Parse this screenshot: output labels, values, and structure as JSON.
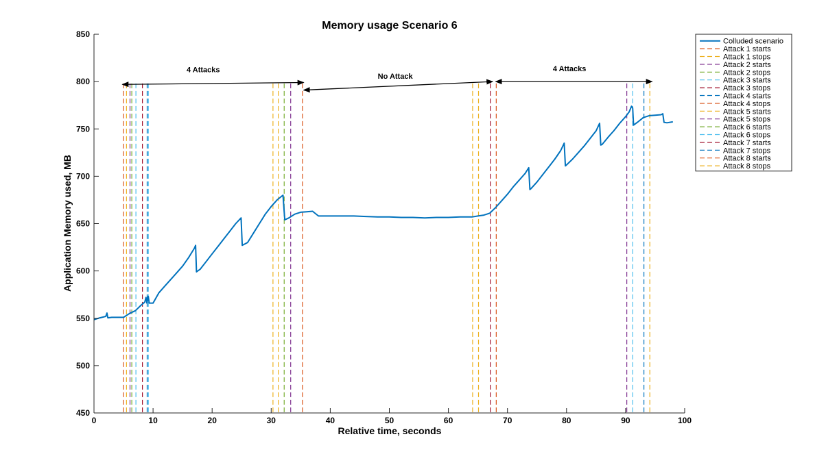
{
  "chart_data": {
    "type": "line",
    "title": "Memory usage Scenario 6",
    "xlabel": "Relative time, seconds",
    "ylabel": "Application Memory used, MB",
    "xlim": [
      0,
      100
    ],
    "ylim": [
      450,
      850
    ],
    "xticks": [
      0,
      10,
      20,
      30,
      40,
      50,
      60,
      70,
      80,
      90,
      100
    ],
    "yticks": [
      450,
      500,
      550,
      600,
      650,
      700,
      750,
      800,
      850
    ],
    "grid": false,
    "legend_position": "top-right outside",
    "colors": {
      "series": "#0072BD",
      "attack_palette": [
        "#D95319",
        "#EDB120",
        "#7E2F8E",
        "#77AC30",
        "#4DBEEE",
        "#A2142F",
        "#0072BD"
      ]
    },
    "series": [
      {
        "name": "Colluded scenario",
        "color": "#0072BD",
        "points": [
          [
            0,
            548.5
          ],
          [
            1.0,
            550.5
          ],
          [
            2.0,
            552.0
          ],
          [
            2.2,
            555.5
          ],
          [
            2.35,
            550.5
          ],
          [
            3.0,
            551.0
          ],
          [
            4.0,
            551.0
          ],
          [
            5.0,
            551.0
          ],
          [
            6.0,
            555.0
          ],
          [
            7.0,
            558.0
          ],
          [
            8.0,
            564.0
          ],
          [
            8.6,
            567.0
          ],
          [
            8.8,
            572.0
          ],
          [
            8.95,
            566.0
          ],
          [
            9.2,
            573.0
          ],
          [
            9.35,
            566.0
          ],
          [
            10.0,
            566.0
          ],
          [
            11.0,
            577.0
          ],
          [
            12.0,
            584.0
          ],
          [
            13.0,
            591.0
          ],
          [
            14.0,
            598.0
          ],
          [
            15.0,
            605.0
          ],
          [
            16.0,
            614.0
          ],
          [
            17.0,
            624.0
          ],
          [
            17.2,
            627.0
          ],
          [
            17.35,
            599.0
          ],
          [
            18.0,
            602.0
          ],
          [
            19.0,
            610.0
          ],
          [
            20.0,
            618.0
          ],
          [
            21.0,
            626.0
          ],
          [
            22.0,
            634.0
          ],
          [
            23.0,
            642.0
          ],
          [
            24.0,
            650.0
          ],
          [
            24.9,
            656.0
          ],
          [
            25.1,
            627.0
          ],
          [
            26.0,
            630.0
          ],
          [
            27.0,
            640.0
          ],
          [
            28.0,
            650.0
          ],
          [
            29.0,
            660.0
          ],
          [
            30.0,
            668.0
          ],
          [
            31.0,
            675.0
          ],
          [
            32.0,
            680.0
          ],
          [
            32.3,
            654.0
          ],
          [
            33.0,
            656.0
          ],
          [
            34.0,
            660.0
          ],
          [
            35.0,
            662.0
          ],
          [
            36.0,
            662.5
          ],
          [
            37.0,
            663.0
          ],
          [
            38.0,
            658.0
          ],
          [
            40.0,
            658.0
          ],
          [
            42.0,
            658.0
          ],
          [
            44.0,
            658.0
          ],
          [
            46.0,
            657.5
          ],
          [
            48.0,
            657.0
          ],
          [
            50.0,
            657.0
          ],
          [
            52.0,
            656.5
          ],
          [
            54.0,
            656.5
          ],
          [
            56.0,
            656.0
          ],
          [
            58.0,
            656.5
          ],
          [
            60.0,
            656.5
          ],
          [
            62.0,
            657.0
          ],
          [
            64.0,
            657.0
          ],
          [
            65.0,
            658.0
          ],
          [
            66.0,
            659.0
          ],
          [
            67.0,
            661.0
          ],
          [
            68.0,
            667.0
          ],
          [
            69.0,
            674.0
          ],
          [
            70.0,
            681.0
          ],
          [
            71.0,
            689.0
          ],
          [
            72.0,
            696.0
          ],
          [
            73.0,
            703.0
          ],
          [
            73.6,
            709.0
          ],
          [
            73.8,
            686.0
          ],
          [
            74.0,
            687.0
          ],
          [
            75.0,
            694.0
          ],
          [
            76.0,
            702.0
          ],
          [
            77.0,
            710.0
          ],
          [
            78.0,
            718.0
          ],
          [
            79.0,
            727.0
          ],
          [
            79.6,
            735.0
          ],
          [
            79.8,
            711.0
          ],
          [
            80.0,
            712.0
          ],
          [
            81.0,
            718.0
          ],
          [
            82.0,
            725.0
          ],
          [
            83.0,
            732.0
          ],
          [
            84.0,
            740.0
          ],
          [
            85.0,
            748.0
          ],
          [
            85.6,
            756.0
          ],
          [
            85.8,
            733.0
          ],
          [
            86.0,
            733.5
          ],
          [
            87.0,
            741.0
          ],
          [
            88.0,
            748.0
          ],
          [
            89.0,
            756.0
          ],
          [
            90.0,
            763.0
          ],
          [
            90.6,
            768.0
          ],
          [
            91.0,
            774.0
          ],
          [
            91.2,
            772.0
          ],
          [
            91.35,
            754.0
          ],
          [
            92.0,
            757.0
          ],
          [
            93.0,
            762.0
          ],
          [
            94.0,
            764.0
          ],
          [
            95.0,
            764.5
          ],
          [
            96.0,
            765.0
          ],
          [
            96.3,
            766.0
          ],
          [
            96.5,
            757.0
          ],
          [
            97.0,
            756.5
          ],
          [
            98.0,
            757.5
          ]
        ]
      }
    ],
    "attack_lines": [
      {
        "label": "Attack 1 starts",
        "x": 5.0,
        "color": "#D95319"
      },
      {
        "label": "Attack 1 stops",
        "x": 5.5,
        "color": "#EDB120"
      },
      {
        "label": "Attack 2 starts",
        "x": 6.1,
        "color": "#7E2F8E"
      },
      {
        "label": "Attack 2 stops",
        "x": 6.4,
        "color": "#77AC30"
      },
      {
        "label": "Attack 3 starts",
        "x": 7.1,
        "color": "#4DBEEE"
      },
      {
        "label": "Attack 3 stops",
        "x": 8.2,
        "color": "#A2142F"
      },
      {
        "label": "Attack 4 starts",
        "x": 9.0,
        "color": "#0072BD"
      },
      {
        "label": "Attack 4 stops",
        "x": 35.3,
        "color": "#D95319"
      },
      {
        "label": "Attack 5 starts",
        "x": 31.2,
        "color": "#EDB120"
      },
      {
        "label": "Attack 5 stops",
        "x": 33.3,
        "color": "#7E2F8E"
      },
      {
        "label": "Attack 6 starts",
        "x": 32.2,
        "color": "#77AC30"
      },
      {
        "label": "Attack 6 stops",
        "x": 9.2,
        "color": "#4DBEEE"
      },
      {
        "label": "Attack 7 starts",
        "x": 67.1,
        "color": "#A2142F"
      },
      {
        "label": "Attack 7 stops",
        "x": 93.1,
        "color": "#0072BD"
      },
      {
        "label": "Attack 8 starts",
        "x": 68.1,
        "color": "#D95319"
      },
      {
        "label": "Attack 8 stops",
        "x": 94.1,
        "color": "#EDB120"
      },
      {
        "label": "",
        "x": 30.3,
        "color": "#EDB120"
      },
      {
        "label": "",
        "x": 64.1,
        "color": "#EDB120"
      },
      {
        "label": "",
        "x": 65.1,
        "color": "#EDB120"
      },
      {
        "label": "",
        "x": 90.2,
        "color": "#7E2F8E"
      },
      {
        "label": "",
        "x": 91.2,
        "color": "#4DBEEE"
      }
    ],
    "annotations": [
      {
        "text": "4 Attacks",
        "x_from": 4.8,
        "x_to": 35.5,
        "y_from": 797,
        "y_to": 799,
        "text_x": 18.5,
        "text_y": 810
      },
      {
        "text": "No Attack",
        "x_from": 35.5,
        "x_to": 67.5,
        "y_from": 791,
        "y_to": 800,
        "text_x": 51.0,
        "text_y": 803
      },
      {
        "text": "4 Attacks",
        "x_from": 68.0,
        "x_to": 94.5,
        "y_from": 800,
        "y_to": 800,
        "text_x": 80.5,
        "text_y": 811
      }
    ]
  }
}
